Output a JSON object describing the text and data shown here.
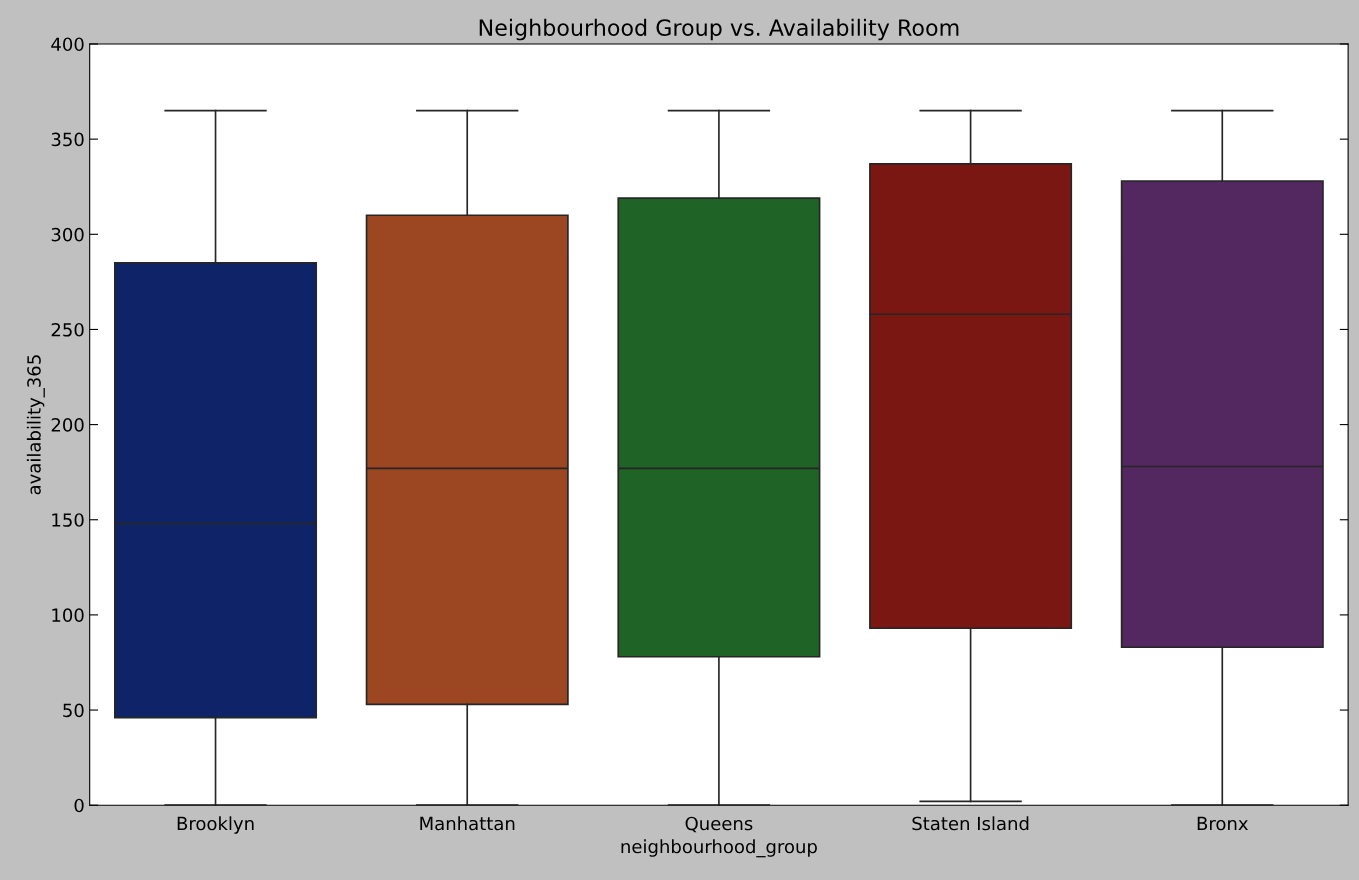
{
  "chart_data": {
    "type": "box",
    "title": "Neighbourhood Group vs. Availability Room",
    "xlabel": "neighbourhood_group",
    "ylabel": "availability_365",
    "categories": [
      "Brooklyn",
      "Manhattan",
      "Queens",
      "Staten Island",
      "Bronx"
    ],
    "colors": [
      "#0f2468",
      "#9c4722",
      "#1f6327",
      "#7b1713",
      "#53275f"
    ],
    "boxes": [
      {
        "low": 0,
        "q1": 46,
        "median": 148,
        "q3": 285,
        "high": 365
      },
      {
        "low": 0,
        "q1": 53,
        "median": 177,
        "q3": 310,
        "high": 365
      },
      {
        "low": 0,
        "q1": 78,
        "median": 177,
        "q3": 319,
        "high": 365
      },
      {
        "low": 2,
        "q1": 93,
        "median": 258,
        "q3": 337,
        "high": 365
      },
      {
        "low": 0,
        "q1": 83,
        "median": 178,
        "q3": 328,
        "high": 365
      }
    ],
    "ylim": [
      0,
      400
    ],
    "yticks": [
      0,
      50,
      100,
      150,
      200,
      250,
      300,
      350,
      400
    ],
    "grid": false
  }
}
